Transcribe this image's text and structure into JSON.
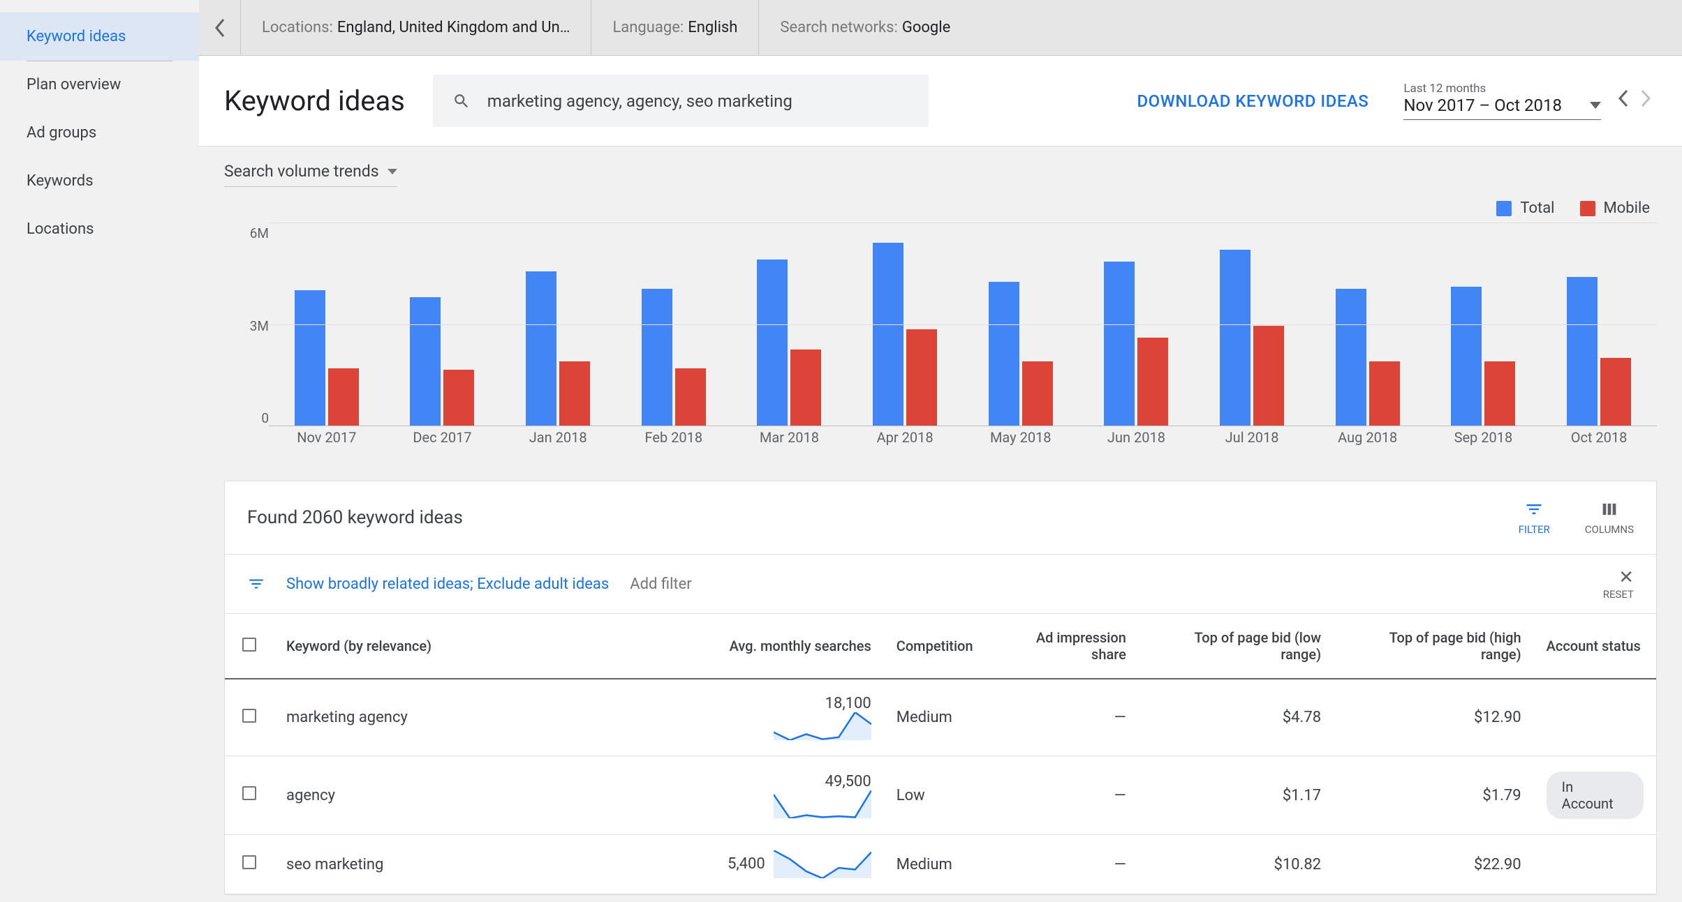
{
  "sidebar": {
    "items": [
      {
        "label": "Keyword ideas",
        "active": true
      },
      {
        "label": "Plan overview"
      },
      {
        "label": "Ad groups"
      },
      {
        "label": "Keywords"
      },
      {
        "label": "Locations"
      }
    ]
  },
  "context": {
    "locations_label": "Locations:",
    "locations_value": "England, United Kingdom and Un…",
    "language_label": "Language:",
    "language_value": "English",
    "networks_label": "Search networks:",
    "networks_value": "Google"
  },
  "header": {
    "title": "Keyword ideas",
    "search_value": "marketing agency, agency, seo marketing",
    "download": "DOWNLOAD KEYWORD IDEAS",
    "date_label": "Last 12 months",
    "date_range": "Nov 2017 – Oct 2018"
  },
  "chart": {
    "title": "Search volume trends",
    "legend": {
      "total": "Total",
      "mobile": "Mobile"
    },
    "colors": {
      "total": "#4285f4",
      "mobile": "#db4437",
      "grid": "#e0e0e0",
      "axis": "#bdbdbd",
      "text": "#5f6368",
      "bg": "#f1f1f1"
    },
    "y_ticks": [
      "6M",
      "3M",
      "0"
    ],
    "y_max": 6000000,
    "months": [
      {
        "label": "Nov 2017",
        "total": 4000000,
        "mobile": 1700000
      },
      {
        "label": "Dec 2017",
        "total": 3800000,
        "mobile": 1650000
      },
      {
        "label": "Jan 2018",
        "total": 4550000,
        "mobile": 1900000
      },
      {
        "label": "Feb 2018",
        "total": 4050000,
        "mobile": 1700000
      },
      {
        "label": "Mar 2018",
        "total": 4900000,
        "mobile": 2250000
      },
      {
        "label": "Apr 2018",
        "total": 5400000,
        "mobile": 2850000
      },
      {
        "label": "May 2018",
        "total": 4250000,
        "mobile": 1900000
      },
      {
        "label": "Jun 2018",
        "total": 4850000,
        "mobile": 2600000
      },
      {
        "label": "Jul 2018",
        "total": 5200000,
        "mobile": 2950000
      },
      {
        "label": "Aug 2018",
        "total": 4050000,
        "mobile": 1900000
      },
      {
        "label": "Sep 2018",
        "total": 4100000,
        "mobile": 1900000
      },
      {
        "label": "Oct 2018",
        "total": 4400000,
        "mobile": 2000000
      }
    ]
  },
  "results": {
    "title": "Found 2060 keyword ideas",
    "filter_label": "FILTER",
    "columns_label": "COLUMNS"
  },
  "filter": {
    "text": "Show broadly related ideas; Exclude adult ideas",
    "add": "Add filter",
    "reset": "RESET"
  },
  "table": {
    "columns": [
      "Keyword (by relevance)",
      "Avg. monthly searches",
      "Competition",
      "Ad impression share",
      "Top of page bid (low range)",
      "Top of page bid (high range)",
      "Account status"
    ],
    "rows": [
      {
        "keyword": "marketing agency",
        "searches": "18,100",
        "competition": "Medium",
        "share": "—",
        "bid_low": "$4.78",
        "bid_high": "$12.90",
        "status": "",
        "spark": [
          20,
          12,
          18,
          13,
          15,
          40,
          28
        ]
      },
      {
        "keyword": "agency",
        "searches": "49,500",
        "competition": "Low",
        "share": "—",
        "bid_low": "$1.17",
        "bid_high": "$1.79",
        "status": "In Account",
        "spark": [
          38,
          15,
          18,
          16,
          17,
          16,
          42
        ]
      },
      {
        "keyword": "seo marketing",
        "searches": "5,400",
        "competition": "Medium",
        "share": "—",
        "bid_low": "$10.82",
        "bid_high": "$22.90",
        "status": "",
        "spark": [
          40,
          30,
          16,
          8,
          20,
          18,
          38
        ]
      }
    ]
  },
  "colors": {
    "blue": "#1a73e8"
  }
}
